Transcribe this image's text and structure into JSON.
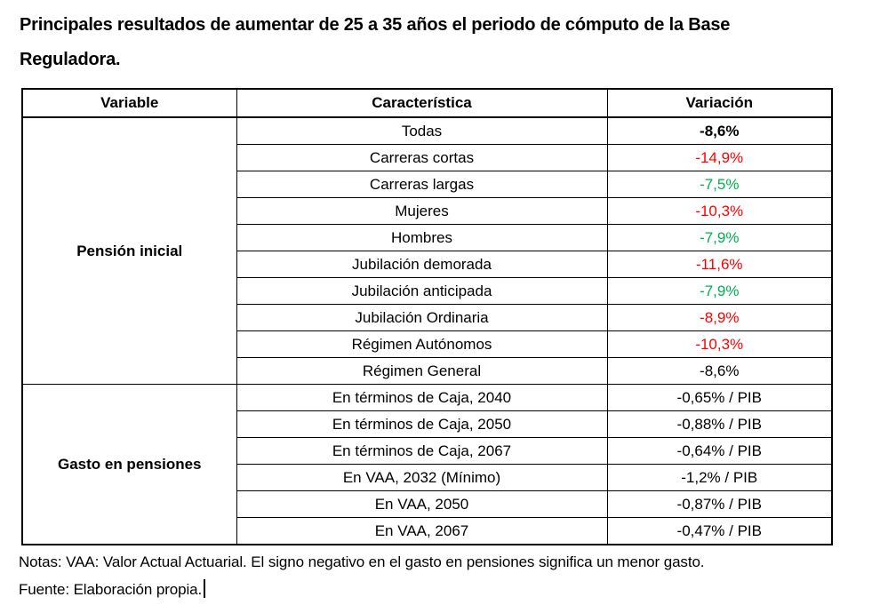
{
  "title": {
    "full_text": "Principales resultados de aumentar de 25 a 35 años el periodo de cómputo de la Base Reguladora.",
    "line1": "Principales resultados de aumentar de 25 a 35 años el periodo de cómputo de la Base",
    "line2": "Reguladora."
  },
  "table": {
    "headers": [
      "Variable",
      "Característica",
      "Variación"
    ],
    "sections": [
      {
        "variable": "Pensión inicial",
        "rows": [
          {
            "caracteristica": "Todas",
            "variacion": "-8,6%",
            "style": "bold"
          },
          {
            "caracteristica": "Carreras cortas",
            "variacion": "-14,9%",
            "style": "red"
          },
          {
            "caracteristica": "Carreras largas",
            "variacion": "-7,5%",
            "style": "green"
          },
          {
            "caracteristica": "Mujeres",
            "variacion": "-10,3%",
            "style": "red"
          },
          {
            "caracteristica": "Hombres",
            "variacion": "-7,9%",
            "style": "green"
          },
          {
            "caracteristica": "Jubilación demorada",
            "variacion": "-11,6%",
            "style": "red"
          },
          {
            "caracteristica": "Jubilación anticipada",
            "variacion": "-7,9%",
            "style": "green"
          },
          {
            "caracteristica": "Jubilación Ordinaria",
            "variacion": "-8,9%",
            "style": "red"
          },
          {
            "caracteristica": "Régimen Autónomos",
            "variacion": "-10,3%",
            "style": "red"
          },
          {
            "caracteristica": "Régimen General",
            "variacion": "-8,6%",
            "style": "normal"
          }
        ]
      },
      {
        "variable": "Gasto en pensiones",
        "rows": [
          {
            "caracteristica": "En términos de Caja, 2040",
            "variacion": "-0,65% / PIB",
            "style": "normal"
          },
          {
            "caracteristica": "En términos de Caja, 2050",
            "variacion": "-0,88% / PIB",
            "style": "normal"
          },
          {
            "caracteristica": "En términos de Caja, 2067",
            "variacion": "-0,64% / PIB",
            "style": "normal"
          },
          {
            "caracteristica": "En VAA, 2032 (Mínimo)",
            "variacion": "-1,2% / PIB",
            "style": "normal"
          },
          {
            "caracteristica": "En VAA, 2050",
            "variacion": "-0,87% / PIB",
            "style": "normal"
          },
          {
            "caracteristica": "En VAA, 2067",
            "variacion": "-0,47% / PIB",
            "style": "normal"
          }
        ]
      }
    ]
  },
  "notes": {
    "line1": "Notas: VAA: Valor Actual Actuarial. El signo negativo en el gasto en pensiones significa un menor gasto.",
    "line2": "Fuente: Elaboración propia."
  },
  "colors": {
    "text": "#000000",
    "border": "#000000",
    "bold": "#000000",
    "normal": "#000000",
    "red": "#FF0000",
    "green": "#00B050"
  }
}
